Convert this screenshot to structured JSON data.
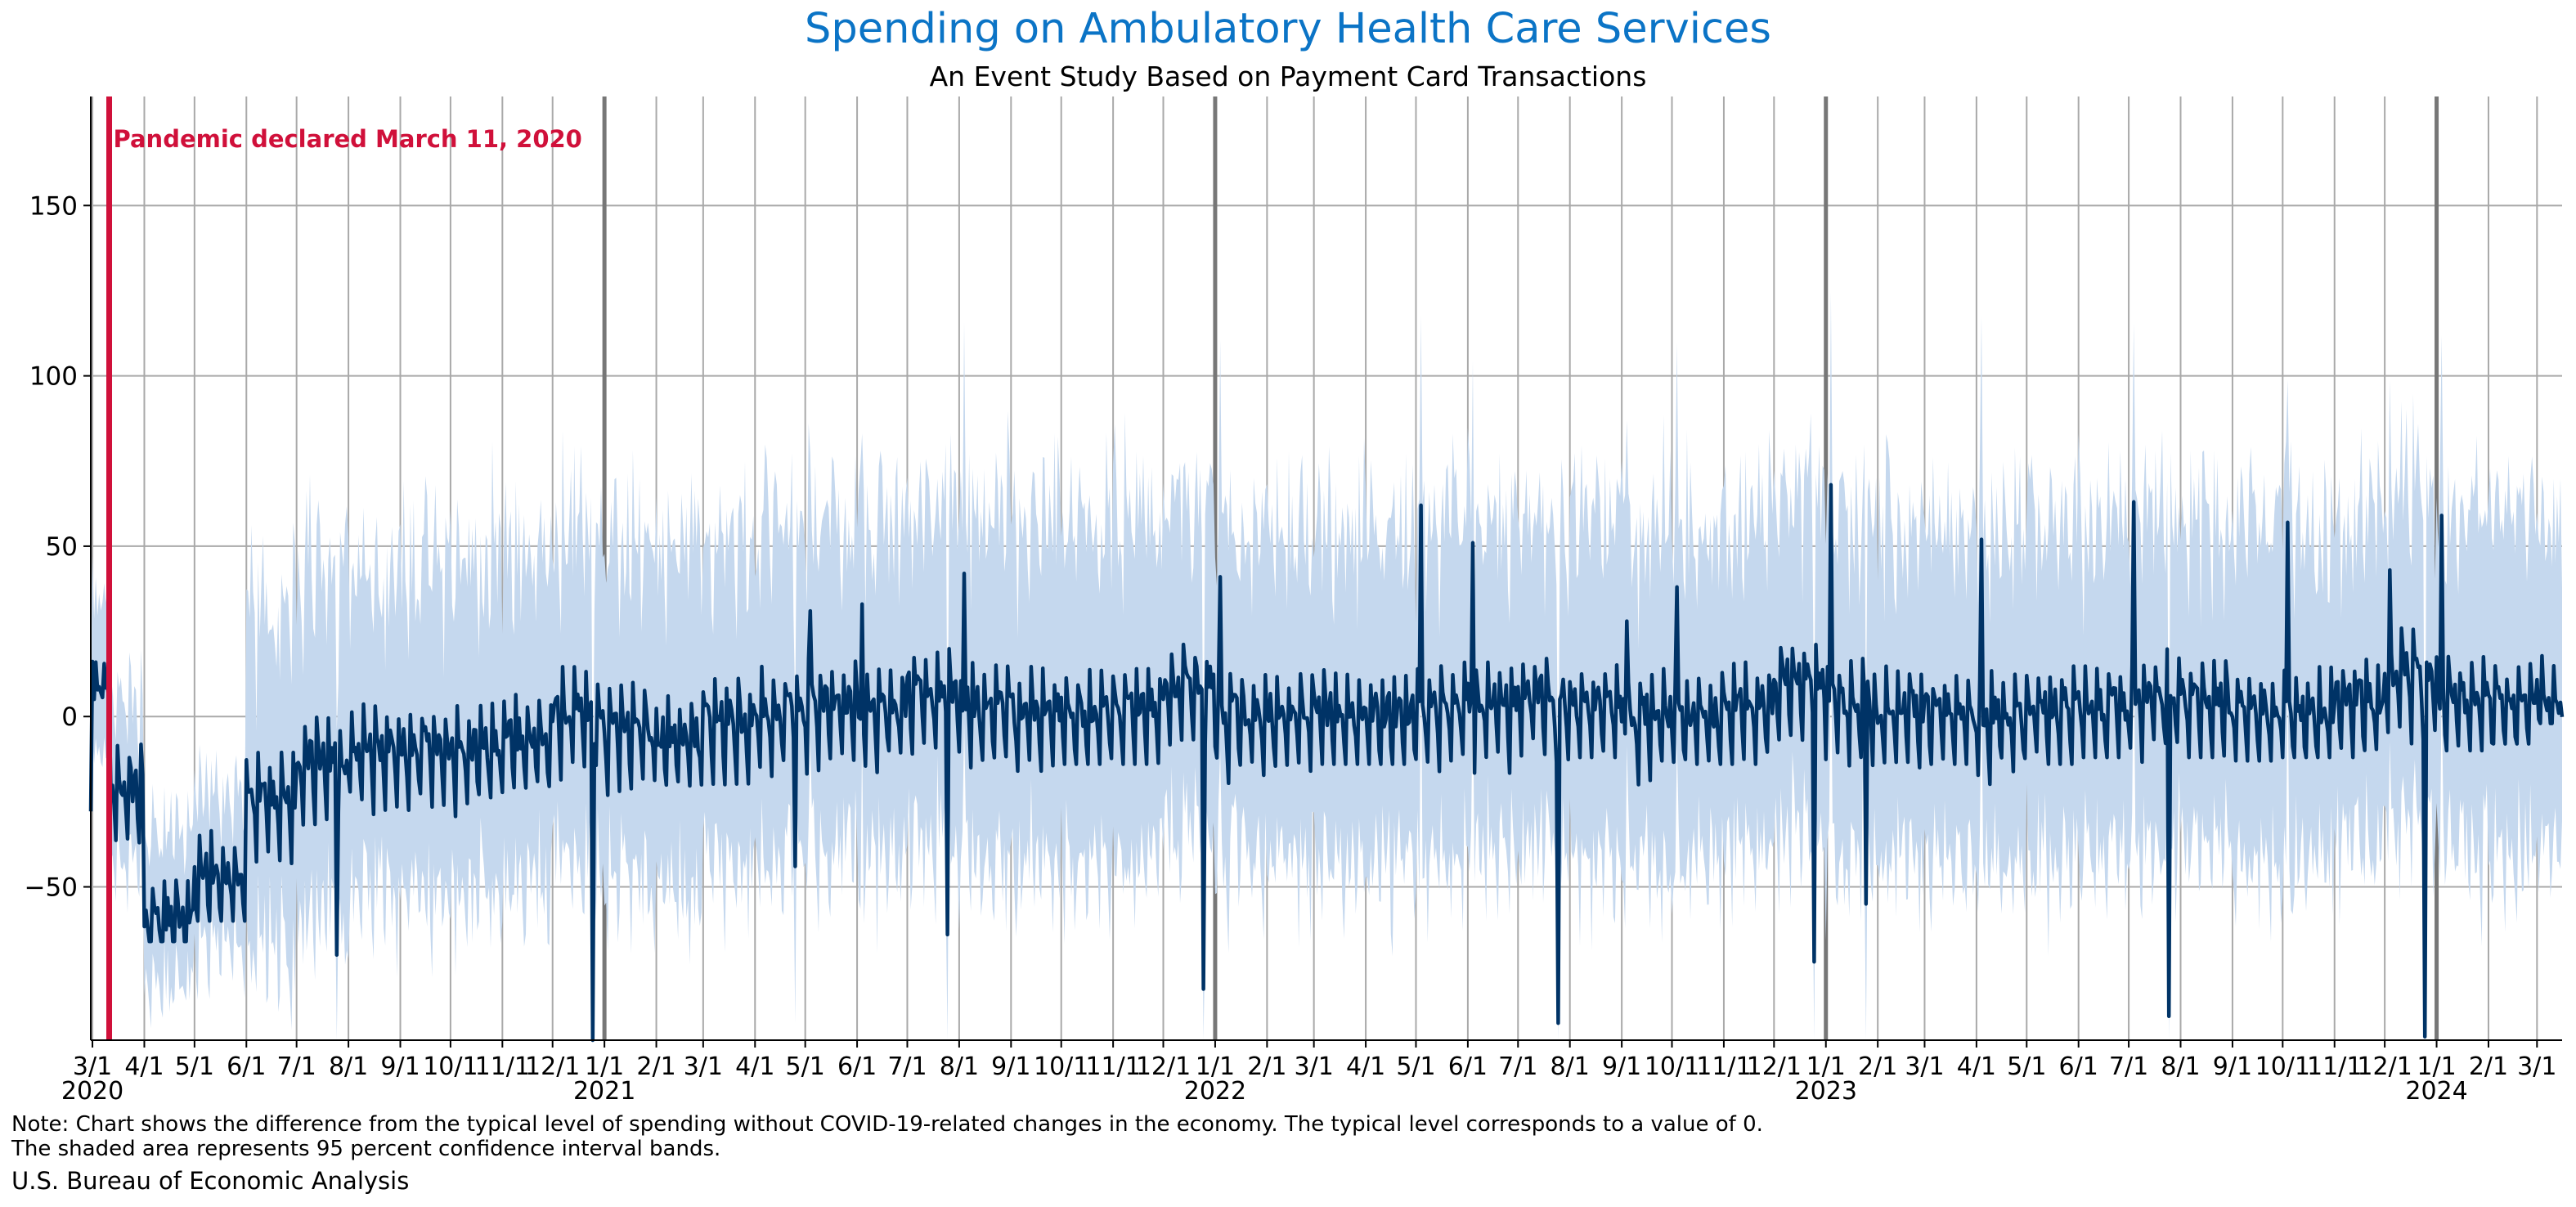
{
  "chart_data": {
    "type": "line",
    "title": "Spending on Ambulatory Health Care Services",
    "subtitle": "An Event Study Based on Payment Card Transactions",
    "ylim": [
      -95,
      182
    ],
    "yticks": [
      -50,
      0,
      50,
      100,
      150
    ],
    "grid": true,
    "x_tick_labels": [
      "3/1",
      "4/1",
      "5/1",
      "6/1",
      "7/1",
      "8/1",
      "9/1",
      "10/1",
      "11/1",
      "12/1",
      "1/1",
      "2/1",
      "3/1",
      "4/1",
      "5/1",
      "6/1",
      "7/1",
      "8/1",
      "9/1",
      "10/1",
      "11/1",
      "12/1",
      "1/1",
      "2/1",
      "3/1",
      "4/1",
      "5/1",
      "6/1",
      "7/1",
      "8/1",
      "9/1",
      "10/1",
      "11/1",
      "12/1",
      "1/1",
      "2/1",
      "3/1",
      "4/1",
      "5/1",
      "6/1",
      "7/1",
      "8/1",
      "9/1",
      "10/1",
      "11/1",
      "12/1",
      "1/1",
      "2/1",
      "3/1"
    ],
    "year_labels": [
      "2020",
      "2021",
      "2022",
      "2023",
      "2024"
    ],
    "annotation": {
      "text": "Pandemic declared March 11, 2020",
      "date": "2020-03-11"
    },
    "series": [
      {
        "values_description": "daily estimate (dark line)",
        "monthly": [
          {
            "month": "2020-03",
            "mean": -20,
            "lo": -58,
            "hi": 14
          },
          {
            "month": "2020-04",
            "mean": -58,
            "lo": -66,
            "hi": -45
          },
          {
            "month": "2020-05",
            "mean": -45,
            "lo": -60,
            "hi": -30
          },
          {
            "month": "2020-06",
            "mean": -22,
            "lo": -50,
            "hi": -10
          },
          {
            "month": "2020-07",
            "mean": -12,
            "lo": -70,
            "hi": 12
          },
          {
            "month": "2020-08",
            "mean": -8,
            "lo": -30,
            "hi": 5
          },
          {
            "month": "2020-09",
            "mean": -8,
            "lo": -45,
            "hi": 6
          },
          {
            "month": "2020-10",
            "mean": -8,
            "lo": -37,
            "hi": 4
          },
          {
            "month": "2020-11",
            "mean": -5,
            "lo": -26,
            "hi": 10
          },
          {
            "month": "2020-12",
            "mean": 3,
            "lo": -95,
            "hi": 19
          },
          {
            "month": "2021-01",
            "mean": -2,
            "lo": -25,
            "hi": 12
          },
          {
            "month": "2021-02",
            "mean": -5,
            "lo": -33,
            "hi": 10
          },
          {
            "month": "2021-03",
            "mean": 0,
            "lo": -20,
            "hi": 22
          },
          {
            "month": "2021-04",
            "mean": 3,
            "lo": -44,
            "hi": 22
          },
          {
            "month": "2021-05",
            "mean": 5,
            "lo": -30,
            "hi": 31
          },
          {
            "month": "2021-06",
            "mean": 4,
            "lo": -28,
            "hi": 33
          },
          {
            "month": "2021-07",
            "mean": 8,
            "lo": -64,
            "hi": 24
          },
          {
            "month": "2021-08",
            "mean": 4,
            "lo": -15,
            "hi": 42
          },
          {
            "month": "2021-09",
            "mean": 3,
            "lo": -16,
            "hi": 20
          },
          {
            "month": "2021-10",
            "mean": 2,
            "lo": -14,
            "hi": 18
          },
          {
            "month": "2021-11",
            "mean": 5,
            "lo": -14,
            "hi": 14
          },
          {
            "month": "2021-12",
            "mean": 10,
            "lo": -80,
            "hi": 27
          },
          {
            "month": "2022-01",
            "mean": 2,
            "lo": -20,
            "hi": 41
          },
          {
            "month": "2022-02",
            "mean": 2,
            "lo": -16,
            "hi": 15
          },
          {
            "month": "2022-03",
            "mean": 2,
            "lo": -14,
            "hi": 14
          },
          {
            "month": "2022-04",
            "mean": 2,
            "lo": -14,
            "hi": 12
          },
          {
            "month": "2022-05",
            "mean": 4,
            "lo": -40,
            "hi": 62
          },
          {
            "month": "2022-06",
            "mean": 5,
            "lo": -24,
            "hi": 51
          },
          {
            "month": "2022-07",
            "mean": 8,
            "lo": -90,
            "hi": 17
          },
          {
            "month": "2022-08",
            "mean": 4,
            "lo": -12,
            "hi": 16
          },
          {
            "month": "2022-09",
            "mean": 2,
            "lo": -20,
            "hi": 28
          },
          {
            "month": "2022-10",
            "mean": 2,
            "lo": -14,
            "hi": 38
          },
          {
            "month": "2022-11",
            "mean": 5,
            "lo": -14,
            "hi": 20
          },
          {
            "month": "2022-12",
            "mean": 12,
            "lo": -72,
            "hi": 31
          },
          {
            "month": "2023-01",
            "mean": 6,
            "lo": -55,
            "hi": 68
          },
          {
            "month": "2023-02",
            "mean": 3,
            "lo": -15,
            "hi": 15
          },
          {
            "month": "2023-03",
            "mean": 2,
            "lo": -14,
            "hi": 14
          },
          {
            "month": "2023-04",
            "mean": 2,
            "lo": -38,
            "hi": 52
          },
          {
            "month": "2023-05",
            "mean": 4,
            "lo": -14,
            "hi": 21
          },
          {
            "month": "2023-06",
            "mean": 4,
            "lo": -12,
            "hi": 27
          },
          {
            "month": "2023-07",
            "mean": 8,
            "lo": -88,
            "hi": 63
          },
          {
            "month": "2023-08",
            "mean": 6,
            "lo": -12,
            "hi": 24
          },
          {
            "month": "2023-09",
            "mean": 3,
            "lo": -13,
            "hi": 20
          },
          {
            "month": "2023-10",
            "mean": 3,
            "lo": -12,
            "hi": 57
          },
          {
            "month": "2023-11",
            "mean": 6,
            "lo": -12,
            "hi": 20
          },
          {
            "month": "2023-12",
            "mean": 14,
            "lo": -94,
            "hi": 43
          },
          {
            "month": "2024-01",
            "mean": 6,
            "lo": -10,
            "hi": 59
          },
          {
            "month": "2024-02",
            "mean": 4,
            "lo": -8,
            "hi": 18
          },
          {
            "month": "2024-03",
            "mean": 6,
            "lo": -2,
            "hi": 20
          }
        ]
      },
      {
        "values_description": "95 percent confidence band (shaded area)",
        "band_halfwidth_typical": 48
      }
    ]
  },
  "note_line1": "Note: Chart shows the difference from the typical level of spending without COVID-19-related changes in the economy. The typical level corresponds to a value of 0.",
  "note_line2": "The shaded area represents 95 percent confidence interval bands.",
  "source": "U.S. Bureau of Economic Analysis",
  "colors": {
    "title": "#0b74c6",
    "line": "#003366",
    "band": "#c5d8ee",
    "grid": "#a9a9a9",
    "year_line": "#777777",
    "pandemic_line": "#d0103a"
  }
}
